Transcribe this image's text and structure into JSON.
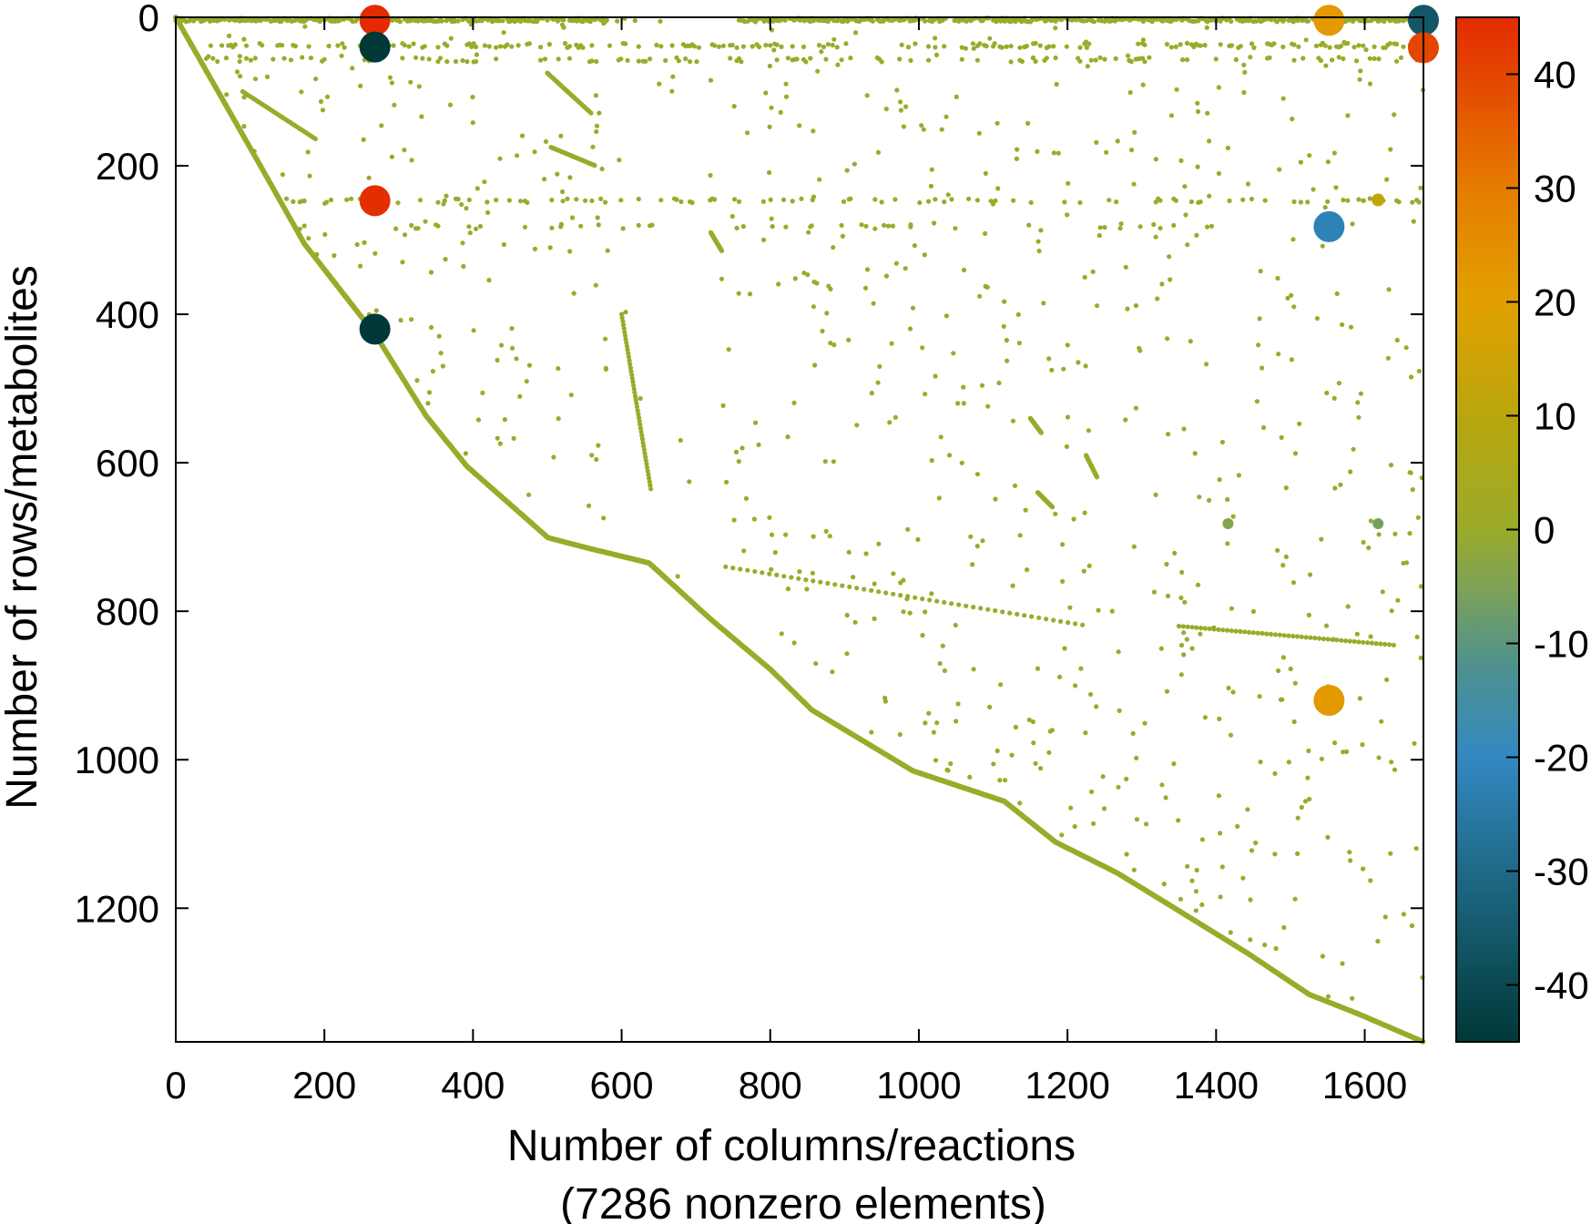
{
  "chart_data": {
    "type": "scatter",
    "subtype": "sparsity-pattern",
    "xlabel": "Number of columns/reactions",
    "xlabel_note": "(7286 nonzero elements)",
    "ylabel": "Number of rows/metabolites",
    "xlim": [
      0,
      1679
    ],
    "ylim": [
      1380,
      0
    ],
    "y_inverted": true,
    "x_ticks": [
      "0",
      "200",
      "400",
      "600",
      "800",
      "1000",
      "1200",
      "1400",
      "1600"
    ],
    "y_ticks": [
      "0",
      "200",
      "400",
      "600",
      "800",
      "1000",
      "1200"
    ],
    "grid": false,
    "nonzero_count": 7286,
    "colorbar": {
      "range": [
        -45,
        45
      ],
      "ticks": [
        "40",
        "30",
        "20",
        "10",
        "0",
        "-10",
        "-20",
        "-30",
        "-40"
      ],
      "colors": [
        {
          "value": -45,
          "color": "#003838"
        },
        {
          "value": -35,
          "color": "#155a6c"
        },
        {
          "value": -20,
          "color": "#3388c0"
        },
        {
          "value": -12,
          "color": "#4f918f"
        },
        {
          "value": -5,
          "color": "#7ea257"
        },
        {
          "value": 0,
          "color": "#9aab2a"
        },
        {
          "value": 10,
          "color": "#b9a60e"
        },
        {
          "value": 20,
          "color": "#e2a000"
        },
        {
          "value": 30,
          "color": "#e57c00"
        },
        {
          "value": 45,
          "color": "#e32a00"
        }
      ]
    },
    "default_value_color": "#9aab2a",
    "diagonal_profile": [
      [
        0,
        0
      ],
      [
        119,
        209
      ],
      [
        173,
        305
      ],
      [
        269,
        428
      ],
      [
        337,
        537
      ],
      [
        392,
        605
      ],
      [
        501,
        701
      ],
      [
        555,
        715
      ],
      [
        637,
        735
      ],
      [
        719,
        810
      ],
      [
        801,
        879
      ],
      [
        856,
        933
      ],
      [
        924,
        974
      ],
      [
        992,
        1015
      ],
      [
        1115,
        1056
      ],
      [
        1184,
        1111
      ],
      [
        1266,
        1152
      ],
      [
        1333,
        1193
      ],
      [
        1443,
        1261
      ],
      [
        1525,
        1316
      ],
      [
        1593,
        1343
      ],
      [
        1679,
        1380
      ]
    ],
    "large_entries": [
      {
        "col": 268,
        "row": 4,
        "value": 45
      },
      {
        "col": 268,
        "row": 40,
        "value": -45
      },
      {
        "col": 268,
        "row": 247,
        "value": 44
      },
      {
        "col": 268,
        "row": 420,
        "value": -45
      },
      {
        "col": 1552,
        "row": 4,
        "value": 22
      },
      {
        "col": 1679,
        "row": 4,
        "value": -36
      },
      {
        "col": 1679,
        "row": 41,
        "value": 40
      },
      {
        "col": 1552,
        "row": 282,
        "value": -22
      },
      {
        "col": 1552,
        "row": 920,
        "value": 22
      },
      {
        "col": 1618,
        "row": 246,
        "value": 12
      },
      {
        "col": 1618,
        "row": 682,
        "value": -6
      },
      {
        "col": 1416,
        "row": 682,
        "value": -4
      }
    ]
  }
}
